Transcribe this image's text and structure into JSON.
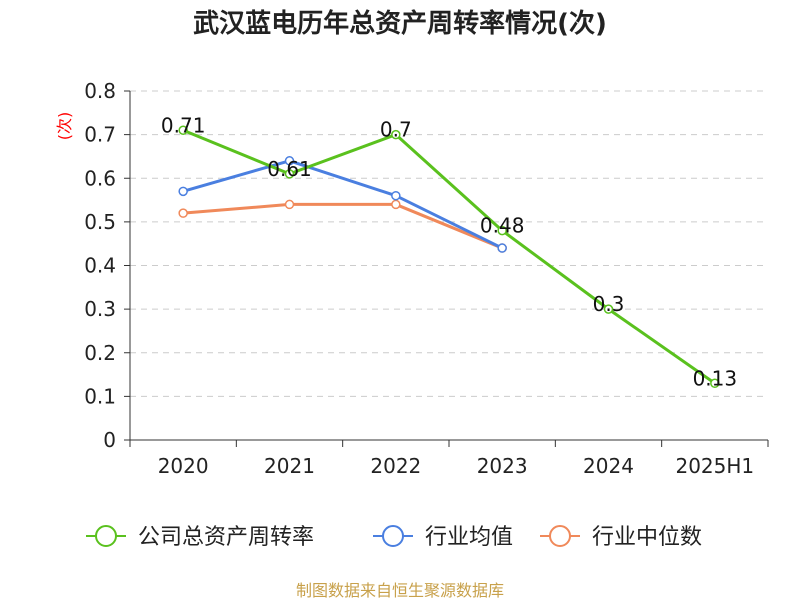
{
  "chart_data": {
    "type": "line",
    "title": "武汉蓝电历年总资产周转率情况(次)",
    "ylabel": "(次)",
    "categories": [
      "2020",
      "2021",
      "2022",
      "2023",
      "2024",
      "2025H1"
    ],
    "ylim": [
      0,
      0.8
    ],
    "yticks": [
      "0",
      "0.1",
      "0.2",
      "0.3",
      "0.4",
      "0.5",
      "0.6",
      "0.7",
      "0.8"
    ],
    "grid": true,
    "legend_position": "bottom",
    "series": [
      {
        "name": "公司总资产周转率",
        "color": "#5ac11e",
        "values": [
          0.71,
          0.61,
          0.7,
          0.48,
          0.3,
          0.13
        ],
        "labels": [
          "0.71",
          "0.61",
          "0.7",
          "0.48",
          "0.3",
          "0.13"
        ]
      },
      {
        "name": "行业均值",
        "color": "#4a7fe0",
        "values": [
          0.57,
          0.64,
          0.56,
          0.44,
          null,
          null
        ]
      },
      {
        "name": "行业中位数",
        "color": "#f0895a",
        "values": [
          0.52,
          0.54,
          0.54,
          0.44,
          null,
          null
        ]
      }
    ],
    "source": "制图数据来自恒生聚源数据库"
  }
}
